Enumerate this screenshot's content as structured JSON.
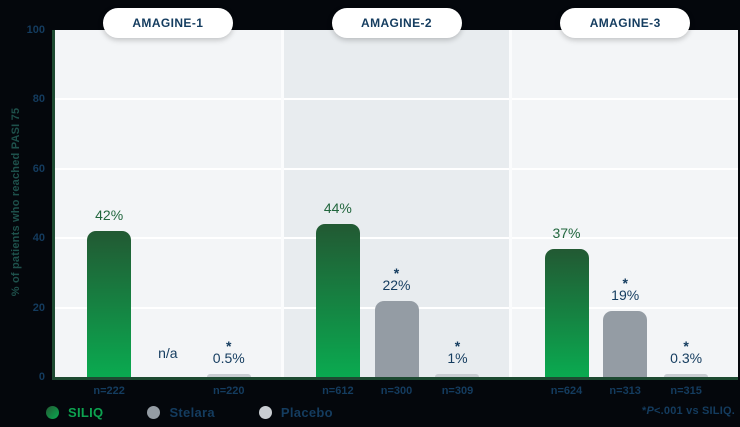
{
  "y_axis": {
    "title": "% of patients who reached PASI 75",
    "ticks": [
      100,
      80,
      60,
      40,
      20,
      0
    ]
  },
  "chart_data": {
    "type": "bar",
    "categories": [
      "AMAGINE-1",
      "AMAGINE-2",
      "AMAGINE-3"
    ],
    "series": [
      {
        "name": "SILIQ",
        "values": [
          42,
          44,
          37
        ],
        "bar_labels": [
          "42%",
          "44%",
          "37%"
        ],
        "n_labels": [
          "n=222",
          "n=612",
          "n=624"
        ],
        "starred": [
          false,
          false,
          false
        ]
      },
      {
        "name": "Stelara",
        "values": [
          null,
          22,
          19
        ],
        "bar_labels": [
          "n/a",
          "22%",
          "19%"
        ],
        "n_labels": [
          "",
          "n=300",
          "n=313"
        ],
        "starred": [
          false,
          true,
          true
        ]
      },
      {
        "name": "Placebo",
        "values": [
          0.5,
          1,
          0.3
        ],
        "bar_labels": [
          "0.5%",
          "1%",
          "0.3%"
        ],
        "n_labels": [
          "n=220",
          "n=309",
          "n=315"
        ],
        "starred": [
          true,
          true,
          true
        ]
      }
    ],
    "ylabel": "% of patients who reached PASI 75",
    "ylim": [
      0,
      100
    ],
    "grid": true,
    "gridline_values": [
      20,
      40,
      60,
      80
    ],
    "legend_position": "bottom-left"
  },
  "legend": {
    "items": [
      {
        "label": "SILIQ"
      },
      {
        "label": "Stelara"
      },
      {
        "label": "Placebo"
      }
    ]
  },
  "footnote": {
    "star": "*",
    "p": "P",
    "rest": "<.001 vs SILIQ."
  },
  "colors": {
    "background": "#04070c",
    "panel_light": "#f3f5f7",
    "panel_dark": "#e8ecef",
    "panel_gap": "#fbfcfd",
    "gridline": "#ffffff",
    "axis_line": "#1d4a31",
    "siliq_bar_top": "#225933",
    "siliq_bar_bottom": "#0aaa50",
    "siliq_label_text": "#21663d",
    "stelara_bar": "#949ca4",
    "placebo_bar": "#c9cdd2",
    "navy_text": "#143c5f",
    "axis_title_text": "#1e504b",
    "legend_siliq_text": "#0da350",
    "pill_bg": "#ffffff"
  }
}
